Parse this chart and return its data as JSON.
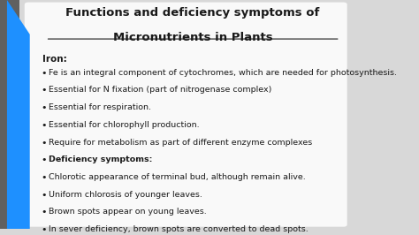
{
  "title_line1": "Functions and deficiency symptoms of",
  "title_line2": "Micronutrients in Plants",
  "background_color": "#d8d8d8",
  "title_color": "#1a1a1a",
  "text_color": "#1a1a1a",
  "bold_item": "Iron:",
  "bullet_items": [
    {
      "text": "Fe is an integral component of cytochromes, which are needed for photosynthesis.",
      "bold": false
    },
    {
      "text": "Essential for N fixation (part of nitrogenase complex)",
      "bold": false
    },
    {
      "text": "Essential for respiration.",
      "bold": false
    },
    {
      "text": "Essential for chlorophyll production.",
      "bold": false
    },
    {
      "text": "Require for metabolism as part of different enzyme complexes",
      "bold": false
    },
    {
      "text": "Deficiency symptoms:",
      "bold": true
    },
    {
      "text": "Chlorotic appearance of terminal bud, although remain alive.",
      "bold": false
    },
    {
      "text": "Uniform chlorosis of younger leaves.",
      "bold": false
    },
    {
      "text": "Brown spots appear on young leaves.",
      "bold": false
    },
    {
      "text": "In sever deficiency, brown spots are converted to dead spots.",
      "bold": false
    }
  ],
  "left_stripe_colors": [
    "#555555",
    "#1e90ff"
  ],
  "figsize": [
    4.74,
    2.66
  ],
  "dpi": 100
}
